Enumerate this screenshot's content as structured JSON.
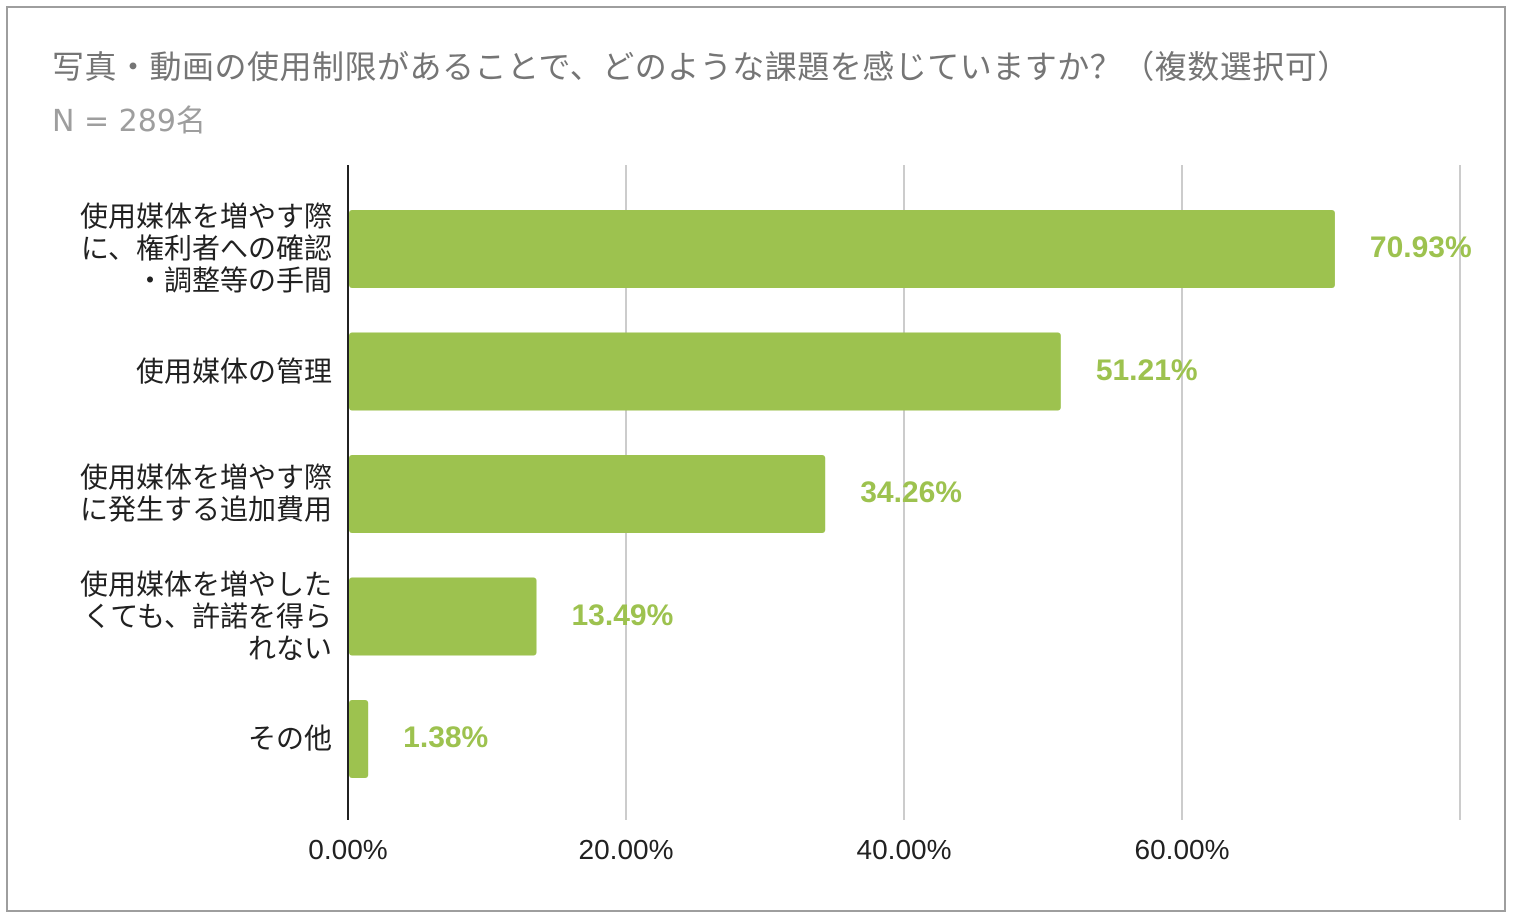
{
  "chart_data": {
    "type": "bar",
    "orientation": "horizontal",
    "title": "写真・動画の使用制限があることで、どのような課題を感じていますか？（複数選択可）",
    "subtitle": "N = 289名",
    "categories": [
      "使用媒体を増やす際\nに、権利者への確認\n・調整等の手間",
      "使用媒体の管理",
      "使用媒体を増やす際\nに発生する追加費用",
      "使用媒体を増やした\nくても、許諾を得ら\nれない",
      "その他"
    ],
    "values": [
      70.93,
      51.21,
      34.26,
      13.49,
      1.38
    ],
    "value_labels": [
      "70.93%",
      "51.21%",
      "34.26%",
      "13.49%",
      "1.38%"
    ],
    "xlim": [
      0,
      80
    ],
    "x_ticks": [
      0,
      20,
      40,
      60
    ],
    "x_tick_labels": [
      "0.00%",
      "20.00%",
      "40.00%",
      "60.00%"
    ],
    "grid": true,
    "bar_color": "#9dc24f",
    "label_color": "#9dc24f"
  }
}
